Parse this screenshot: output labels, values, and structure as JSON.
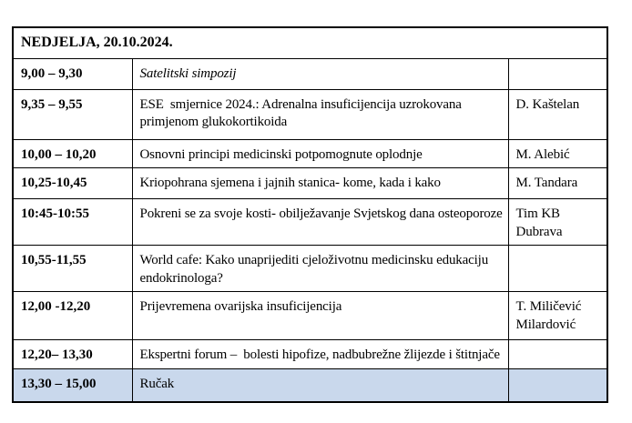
{
  "table": {
    "header": "NEDJELJA, 20.10.2024.",
    "highlight_color": "#c9d8ec",
    "columns": [
      "time",
      "title",
      "speaker"
    ],
    "rows": [
      {
        "time": "9,00 – 9,30",
        "title": "Satelitski simpozij",
        "speaker": "",
        "italic": true,
        "highlight": false
      },
      {
        "time": "9,35 – 9,55",
        "title": "ESE  smjernice 2024.: Adrenalna insuficijencija uzrokovana primjenom glukokortikoida",
        "speaker": "D. Kaštelan",
        "italic": false,
        "highlight": false
      },
      {
        "time": "10,00 – 10,20",
        "title": "Osnovni principi medicinski potpomognute oplodnje",
        "speaker": "M. Alebić",
        "italic": false,
        "highlight": false
      },
      {
        "time": "10,25-10,45",
        "title": "Kriopohrana sjemena i jajnih stanica- kome, kada i kako",
        "speaker": "M. Tandara",
        "italic": false,
        "highlight": false
      },
      {
        "time": "10:45-10:55",
        "title": "Pokreni se za svoje kosti- obilježavanje Svjetskog dana osteoporoze",
        "speaker": "Tim KB Dubrava",
        "italic": false,
        "highlight": false
      },
      {
        "time": "10,55-11,55",
        "title": "World cafe: Kako unaprijediti cjeloživotnu medicinsku edukaciju endokrinologa?",
        "speaker": "",
        "italic": false,
        "highlight": false
      },
      {
        "time": "12,00 -12,20",
        "title": "Prijevremena ovarijska insuficijencija",
        "speaker": "T. Miličević Milardović",
        "italic": false,
        "highlight": false
      },
      {
        "time": "12,20– 13,30",
        "title": "Ekspertni forum –  bolesti hipofize, nadbubrežne žlijezde i štitnjače",
        "speaker": "",
        "italic": false,
        "highlight": false
      },
      {
        "time": "13,30 – 15,00",
        "title": "Ručak",
        "speaker": "",
        "italic": false,
        "highlight": true
      }
    ]
  }
}
